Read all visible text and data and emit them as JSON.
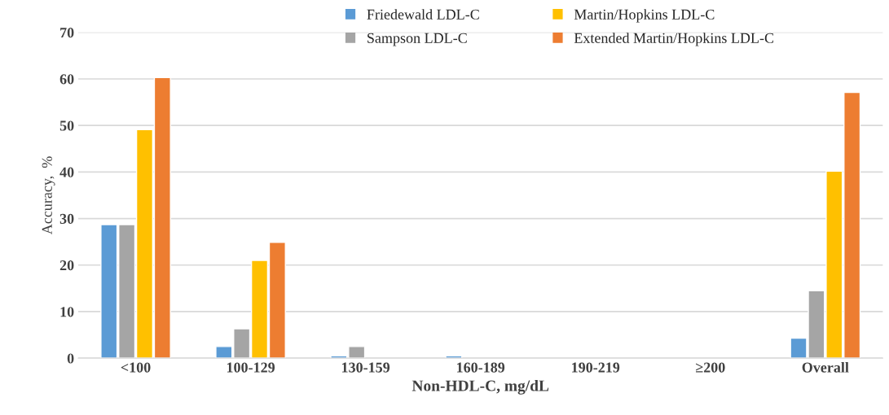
{
  "chart_data": {
    "type": "bar",
    "xlabel": "Non-HDL-C, mg/dL",
    "ylabel": "Accuracy,  %",
    "categories": [
      "<100",
      "100-129",
      "130-159",
      "160-189",
      "190-219",
      "≥200",
      "Overall"
    ],
    "series": [
      {
        "name": "Friedewald LDL-C",
        "color": "#5b9bd5",
        "values": [
          28.7,
          2.5,
          0.5,
          0.5,
          null,
          null,
          4.3
        ]
      },
      {
        "name": "Sampson LDL-C",
        "color": "#a5a5a5",
        "values": [
          28.7,
          6.3,
          2.5,
          null,
          null,
          null,
          14.5
        ]
      },
      {
        "name": "Martin/Hopkins LDL-C",
        "color": "#ffc000",
        "values": [
          49.1,
          21.0,
          null,
          null,
          null,
          null,
          40.2
        ]
      },
      {
        "name": "Extended Martin/Hopkins LDL-C",
        "color": "#ed7d31",
        "values": [
          60.3,
          24.9,
          null,
          null,
          null,
          null,
          57.1
        ]
      }
    ],
    "ylim": [
      0,
      70
    ],
    "yticks": [
      0,
      10,
      20,
      30,
      40,
      50,
      60,
      70
    ],
    "grid": "y",
    "legend": "top"
  }
}
